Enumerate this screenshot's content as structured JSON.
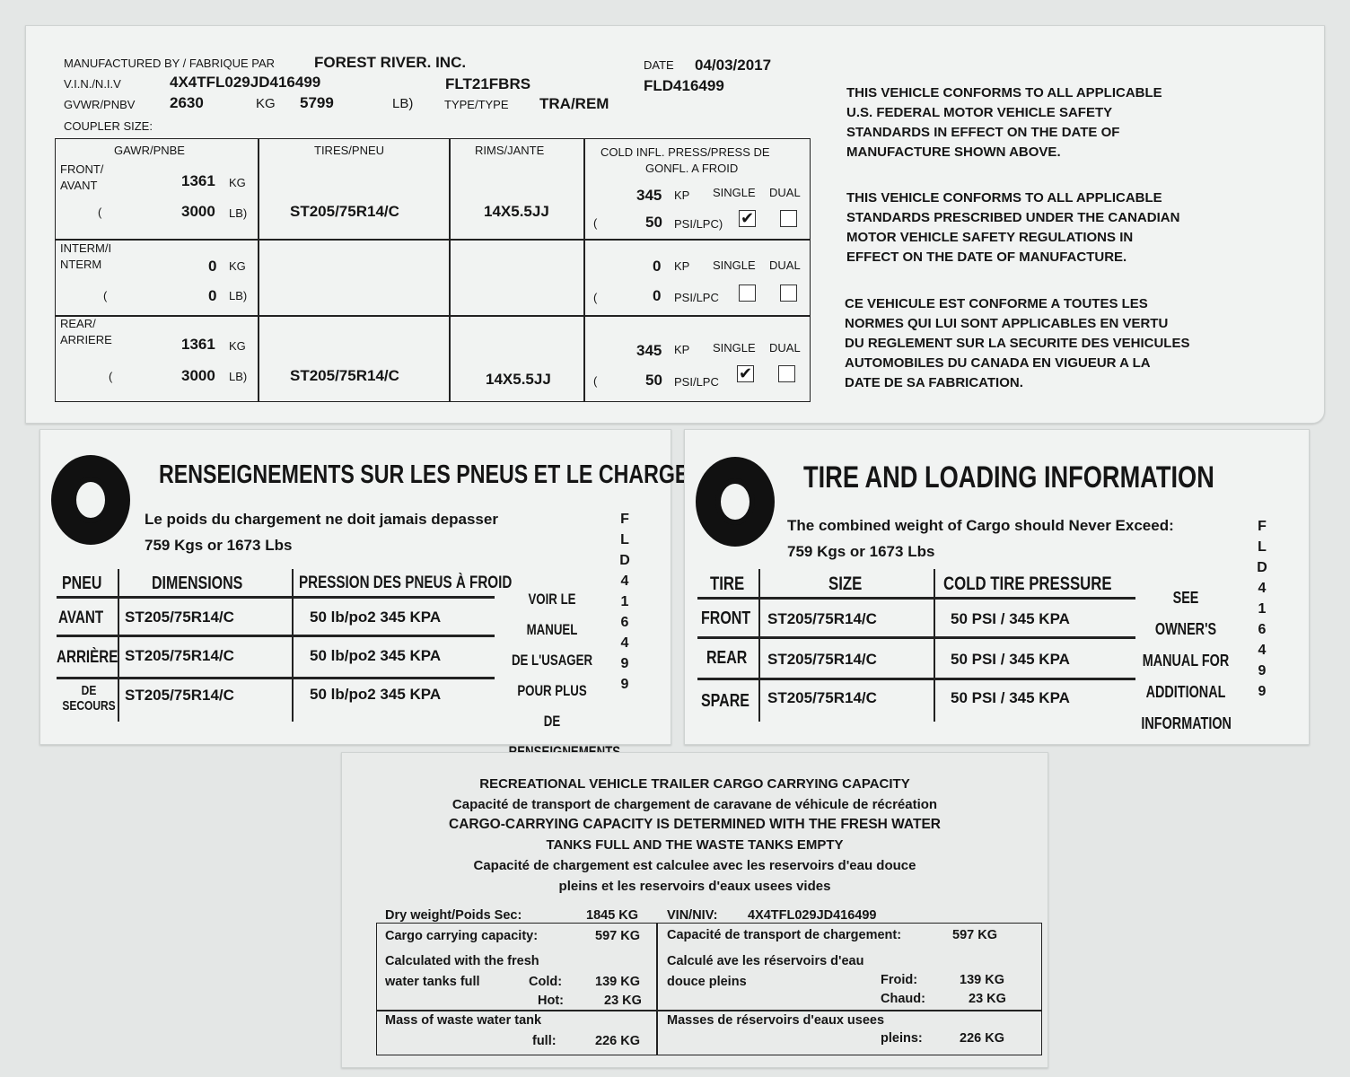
{
  "cert": {
    "manufactured_label": "MANUFACTURED BY / FABRIQUE PAR",
    "manufacturer": "FOREST RIVER. INC.",
    "date_label": "DATE",
    "date": "04/03/2017",
    "vin_label": "V.I.N./N.I.V",
    "vin": "4X4TFL029JD416499",
    "model": "FLT21FBRS",
    "fld": "FLD416499",
    "gvwr_label": "GVWR/PNBV",
    "gvwr_kg": "2630",
    "kg": "KG",
    "gvwr_lb": "5799",
    "lb": "LB)",
    "type_label": "TYPE/TYPE",
    "type": "TRA/REM",
    "coupler_label": "COUPLER SIZE:",
    "headers": {
      "gawr": "GAWR/PNBE",
      "tires": "TIRES/PNEU",
      "rims": "RIMS/JANTE",
      "cold1": "COLD INFL. PRESS/PRESS DE",
      "cold2": "GONFL. A FROID"
    },
    "units": {
      "kg": "KG",
      "lb": "LB)",
      "paren": "(",
      "kp": "KP",
      "psi": "PSI/LPC)",
      "psi2": "PSI/LPC",
      "single": "SINGLE",
      "dual": "DUAL"
    },
    "rows": [
      {
        "l1": "FRONT/",
        "l2": "AVANT",
        "kg": "1361",
        "lb": "3000",
        "tire": "ST205/75R14/C",
        "rim": "14X5.5JJ",
        "kp": "345",
        "psi": "50",
        "single": true,
        "dual": false
      },
      {
        "l1": "INTERM/I",
        "l2": "NTERM",
        "kg": "0",
        "lb": "0",
        "tire": "",
        "rim": "",
        "kp": "0",
        "psi": "0",
        "single": false,
        "dual": false
      },
      {
        "l1": "REAR/",
        "l2": "ARRIERE",
        "kg": "1361",
        "lb": "3000",
        "tire": "ST205/75R14/C",
        "rim": "14X5.5JJ",
        "kp": "345",
        "psi": "50",
        "single": true,
        "dual": false
      }
    ],
    "check": "✔",
    "us": [
      "THIS VEHICLE CONFORMS TO ALL APPLICABLE",
      "U.S. FEDERAL MOTOR VEHICLE SAFETY",
      "STANDARDS IN EFFECT ON THE DATE OF",
      "MANUFACTURE SHOWN ABOVE."
    ],
    "ca": [
      "THIS VEHICLE CONFORMS TO ALL APPLICABLE",
      "STANDARDS PRESCRIBED UNDER THE CANADIAN",
      "MOTOR VEHICLE SAFETY REGULATIONS IN",
      "EFFECT ON THE DATE OF MANUFACTURE."
    ],
    "fr": [
      "CE VEHICULE EST CONFORME A TOUTES LES",
      "NORMES QUI LUI SONT APPLICABLES EN VERTU",
      "DU REGLEMENT SUR LA SECURITE DES VEHICULES",
      "AUTOMOBILES DU CANADA EN VIGUEUR A LA",
      "DATE DE SA FABRICATION."
    ]
  },
  "fr_tire": {
    "title": "RENSEIGNEMENTS SUR LES PNEUS ET LE CHARGEMENT",
    "line1": "Le poids du chargement ne doit jamais depasser",
    "line2": "759  Kgs or 1673  Lbs",
    "headers": [
      "PNEU",
      "DIMENSIONS",
      "PRESSION DES PNEUS À FROID"
    ],
    "rows": [
      {
        "pos": "AVANT",
        "size": "ST205/75R14/C",
        "press": "50  lb/po2  345 KPA"
      },
      {
        "pos": "ARRIÈRE",
        "size": "ST205/75R14/C",
        "press": "50  lb/po2  345 KPA"
      },
      {
        "pos": "DE SECOURS",
        "size": "ST205/75R14/C",
        "press": "50 lb/po2  345 KPA"
      }
    ],
    "note": [
      "VOIR LE MANUEL",
      "DE L'USAGER",
      "POUR PLUS DE",
      "RENSEIGNEMENTS"
    ],
    "code": "FLD416499"
  },
  "en_tire": {
    "title": "TIRE AND LOADING INFORMATION",
    "line1": "The combined weight of Cargo should Never Exceed:",
    "line2": "759  Kgs or 1673  Lbs",
    "headers": [
      "TIRE",
      "SIZE",
      "COLD TIRE PRESSURE"
    ],
    "rows": [
      {
        "pos": "FRONT",
        "size": "ST205/75R14/C",
        "press": "50 PSI / 345 KPA"
      },
      {
        "pos": "REAR",
        "size": "ST205/75R14/C",
        "press": "50 PSI / 345 KPA"
      },
      {
        "pos": "SPARE",
        "size": "ST205/75R14/C",
        "press": "50 PSI / 345 KPA"
      }
    ],
    "note": [
      "SEE OWNER'S",
      "MANUAL FOR",
      "ADDITIONAL",
      "INFORMATION"
    ],
    "code": "FLD416499"
  },
  "cargo": {
    "t1": "RECREATIONAL VEHICLE TRAILER CARGO CARRYING CAPACITY",
    "t2": "Capacité de transport de chargement de caravane de véhicule de récréation",
    "t3": "CARGO-CARRYING CAPACITY IS DETERMINED WITH THE FRESH WATER",
    "t4": "TANKS FULL AND THE WASTE TANKS EMPTY",
    "t5": "Capacité de chargement est calculee avec les reservoirs d'eau douce",
    "t6": "pleins et les reservoirs d'eaux usees vides",
    "dry_label": "Dry weight/Poids Sec:",
    "dry": "1845 KG",
    "vin_label": "VIN/NIV:",
    "vin": "4X4TFL029JD416499",
    "ccc_en": "Cargo carrying capacity:",
    "ccc": "597 KG",
    "ccc_fr": "Capacité de transport de chargement:",
    "ccc_fr_val": "597 KG",
    "calc_en1": "Calculated with the fresh",
    "calc_en2": "water tanks full",
    "cold": "Cold:",
    "cold_val": "139 KG",
    "hot": "Hot:",
    "hot_val": "23 KG",
    "calc_fr1": "Calculé ave les réservoirs d'eau",
    "calc_fr2": "douce pleins",
    "froid": "Froid:",
    "froid_val": "139 KG",
    "chaud": "Chaud:",
    "chaud_val": "23 KG",
    "waste_en1": "Mass of waste water tank",
    "waste_en2": "full:",
    "waste_val": "226 KG",
    "waste_fr1": "Masses de réservoirs d'eaux usees",
    "waste_fr2": "pleins:",
    "waste_fr_val": "226 KG"
  }
}
